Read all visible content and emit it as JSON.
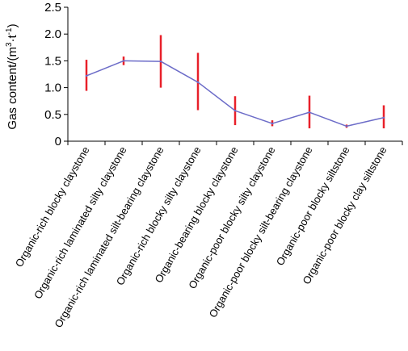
{
  "chart_data": {
    "type": "line",
    "ylabel_parts": [
      "Gas content/(m",
      "3",
      "·t",
      "-1",
      ")"
    ],
    "ylim": [
      0,
      2.5
    ],
    "yticks": [
      "0",
      "0.5",
      "1.0",
      "1.5",
      "2.0",
      "2.5"
    ],
    "grid": false,
    "categories": [
      "Organic-rich blocky claystone",
      "Organic-rich laminated silty claystone",
      "Organic-rich laminated silt-bearing claystone",
      "Organic-rich blocky silty claystone",
      "Organic-bearing blocky claystone",
      "Organic-poor blocky silty claystone",
      "Organic-poor blocky silt-bearing claystone",
      "Organic-poor blocky siltstone",
      "Organic-poor blocky clay siltstone"
    ],
    "series": [
      {
        "values": [
          1.22,
          1.5,
          1.49,
          1.1,
          0.57,
          0.33,
          0.54,
          0.28,
          0.44
        ],
        "error_low": [
          0.94,
          1.42,
          1.0,
          0.58,
          0.3,
          0.28,
          0.24,
          0.25,
          0.24
        ],
        "error_high": [
          1.52,
          1.58,
          1.98,
          1.65,
          0.84,
          0.39,
          0.85,
          0.31,
          0.67
        ],
        "line_color": "#6c6cc8",
        "error_color": "#e8202a"
      }
    ]
  }
}
